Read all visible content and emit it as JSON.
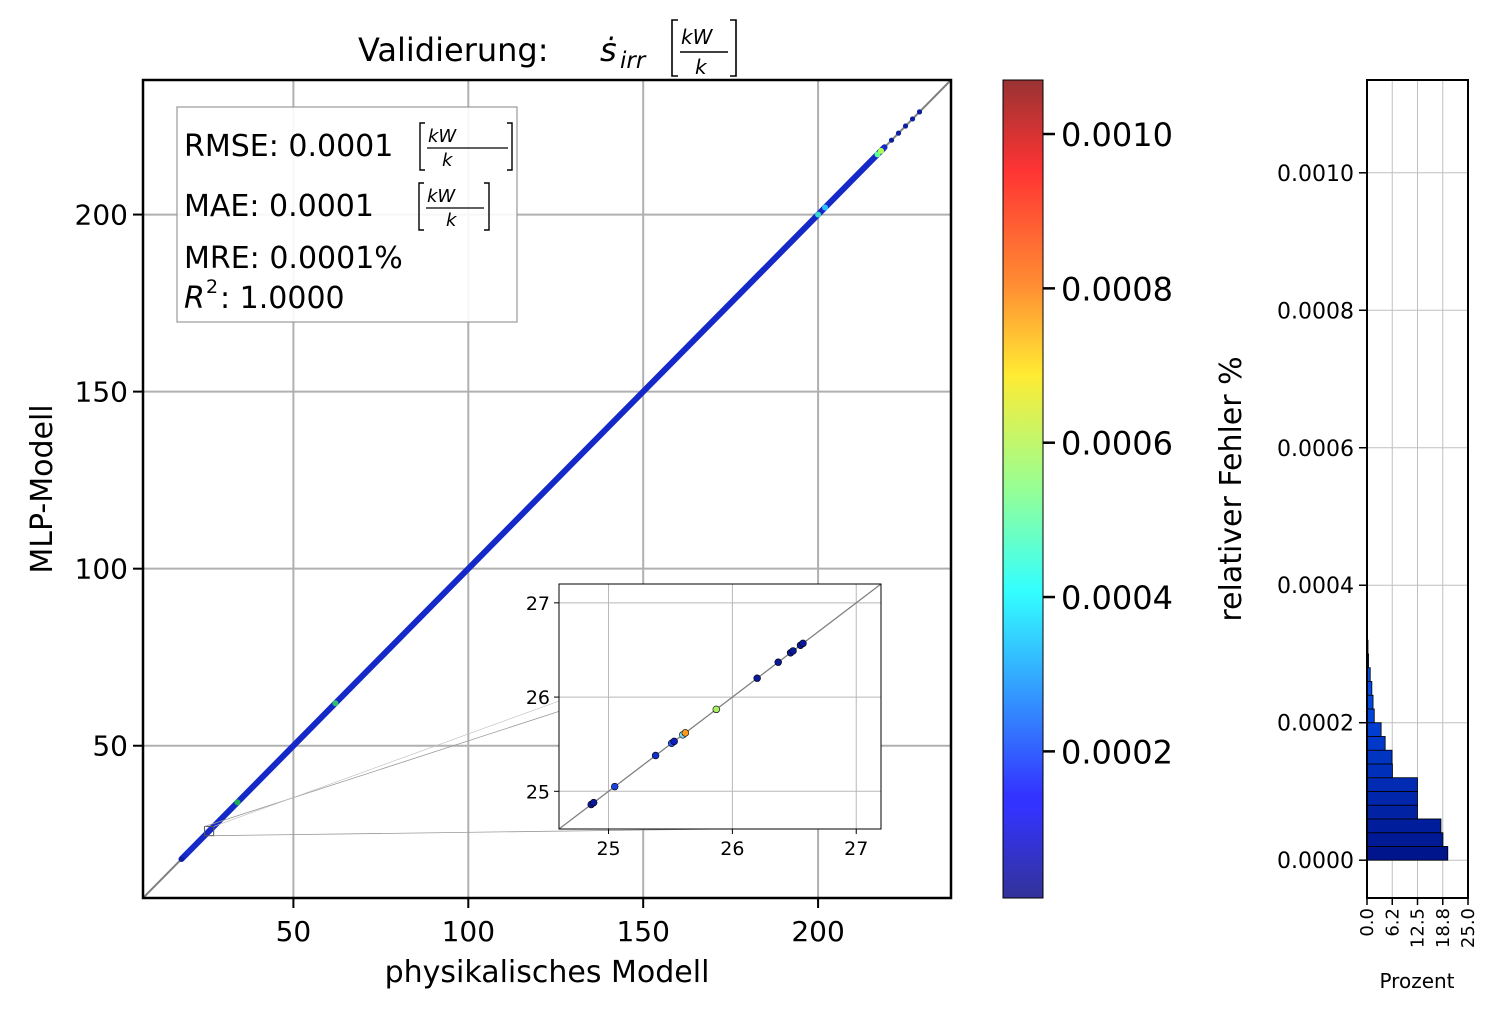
{
  "title": {
    "text": "Validierung: ",
    "symbol": "ṡ",
    "subscript": "irr",
    "unit_num": "kW",
    "unit_den": "k"
  },
  "stats": {
    "rmse": {
      "label": "RMSE: 0.0001",
      "unit_num": "kW",
      "unit_den": "k"
    },
    "mae": {
      "label": "MAE: 0.0001",
      "unit_num": "kW",
      "unit_den": "k"
    },
    "mre": {
      "label": "MRE: 0.0001%"
    },
    "r2": {
      "symbol": "R",
      "sup": "2",
      "label": ": 1.0000"
    }
  },
  "colorbar": {
    "label": "relativer Fehler %",
    "ticks": [
      "0.0002",
      "0.0004",
      "0.0006",
      "0.0008",
      "0.0010"
    ],
    "tick_values": [
      0.0002,
      0.0004,
      0.0006,
      0.0008,
      0.001
    ],
    "range": [
      1e-05,
      0.00107
    ],
    "colormap": "jet",
    "alpha": 0.8
  },
  "chart_data": [
    {
      "type": "scatter",
      "xlabel": "physikalisches Modell",
      "ylabel": "MLP-Modell",
      "xlim": [
        7,
        238
      ],
      "ylim": [
        7,
        238
      ],
      "xticks": [
        "50",
        "100",
        "150",
        "200"
      ],
      "yticks": [
        "50",
        "100",
        "150",
        "200"
      ],
      "xtick_values": [
        50,
        100,
        150,
        200
      ],
      "ytick_values": [
        50,
        100,
        150,
        200
      ],
      "grid": true,
      "identity_line": true,
      "line": {
        "from": 18,
        "to": 219,
        "color": "#1528c8"
      },
      "highlights": [
        {
          "x": 34,
          "y": 34,
          "color": "#1faa5a"
        },
        {
          "x": 62,
          "y": 62,
          "color": "#2fbf70"
        },
        {
          "x": 200,
          "y": 200,
          "color": "#3ad7c8"
        },
        {
          "x": 202,
          "y": 202,
          "color": "#2ac0ff"
        },
        {
          "x": 217,
          "y": 217,
          "color": "#63ff8f"
        },
        {
          "x": 218,
          "y": 218,
          "color": "#b0ff50"
        }
      ],
      "sparse_points": [
        {
          "x": 18,
          "y": 18,
          "color": "#0c1fa0"
        },
        {
          "x": 20,
          "y": 20,
          "color": "#1a2fd0"
        },
        {
          "x": 221,
          "y": 221,
          "color": "#0c1fa0"
        },
        {
          "x": 223,
          "y": 223,
          "color": "#0c1fa0"
        },
        {
          "x": 225,
          "y": 225,
          "color": "#0c1fa0"
        },
        {
          "x": 227,
          "y": 227,
          "color": "#0c1fa0"
        },
        {
          "x": 229,
          "y": 229,
          "color": "#0c1fa0"
        }
      ]
    },
    {
      "type": "scatter",
      "role": "inset-zoom",
      "xlim": [
        24.6,
        27.2
      ],
      "ylim": [
        24.6,
        27.2
      ],
      "xticks": [
        "25",
        "26",
        "27"
      ],
      "yticks": [
        "25",
        "26",
        "27"
      ],
      "xtick_values": [
        25,
        26,
        27
      ],
      "ytick_values": [
        25,
        26,
        27
      ],
      "grid": true,
      "identity_line": true,
      "points": [
        {
          "x": 24.86,
          "y": 24.86,
          "color": "#0a1a9a"
        },
        {
          "x": 24.88,
          "y": 24.88,
          "color": "#0a1a9a"
        },
        {
          "x": 25.05,
          "y": 25.05,
          "color": "#1a40e0"
        },
        {
          "x": 25.38,
          "y": 25.38,
          "color": "#1030c8"
        },
        {
          "x": 25.51,
          "y": 25.51,
          "color": "#2050f0"
        },
        {
          "x": 25.53,
          "y": 25.53,
          "color": "#1020c0"
        },
        {
          "x": 25.6,
          "y": 25.6,
          "color": "#7fd9ff"
        },
        {
          "x": 25.62,
          "y": 25.62,
          "color": "#ff9a20"
        },
        {
          "x": 25.87,
          "y": 25.87,
          "color": "#a8f060"
        },
        {
          "x": 26.2,
          "y": 26.2,
          "color": "#0a1a9a"
        },
        {
          "x": 26.37,
          "y": 26.37,
          "color": "#0a1a9a"
        },
        {
          "x": 26.47,
          "y": 26.47,
          "color": "#0a1a9a"
        },
        {
          "x": 26.49,
          "y": 26.49,
          "color": "#0a1a9a"
        },
        {
          "x": 26.55,
          "y": 26.55,
          "color": "#0a1a9a"
        },
        {
          "x": 26.57,
          "y": 26.57,
          "color": "#0a1a9a"
        }
      ]
    },
    {
      "type": "bar",
      "orientation": "horizontal",
      "xlabel": "Prozent",
      "xlim": [
        0,
        25
      ],
      "ylim": [
        -5.5e-05,
        0.001135
      ],
      "xticks": [
        "0.0",
        "6.2",
        "12.5",
        "18.8",
        "25.0"
      ],
      "xtick_values": [
        0,
        6.25,
        12.5,
        18.75,
        25
      ],
      "yticks": [
        "0.0000",
        "0.0002",
        "0.0004",
        "0.0006",
        "0.0008",
        "0.0010"
      ],
      "ytick_values": [
        0,
        0.0002,
        0.0004,
        0.0006,
        0.0008,
        0.001
      ],
      "bin_width": 2e-05,
      "bins": [
        {
          "start": 0.0,
          "value": 20.0
        },
        {
          "start": 2e-05,
          "value": 18.8
        },
        {
          "start": 4e-05,
          "value": 18.3
        },
        {
          "start": 6e-05,
          "value": 12.5
        },
        {
          "start": 8e-05,
          "value": 12.5
        },
        {
          "start": 0.0001,
          "value": 12.5
        },
        {
          "start": 0.00012,
          "value": 6.3
        },
        {
          "start": 0.00014,
          "value": 6.2
        },
        {
          "start": 0.00016,
          "value": 4.5
        },
        {
          "start": 0.00018,
          "value": 3.5
        },
        {
          "start": 0.0002,
          "value": 1.8
        },
        {
          "start": 0.00022,
          "value": 1.5
        },
        {
          "start": 0.00024,
          "value": 1.2
        },
        {
          "start": 0.00026,
          "value": 0.8
        },
        {
          "start": 0.00028,
          "value": 0.4
        },
        {
          "start": 0.0003,
          "value": 0.2
        }
      ]
    }
  ]
}
